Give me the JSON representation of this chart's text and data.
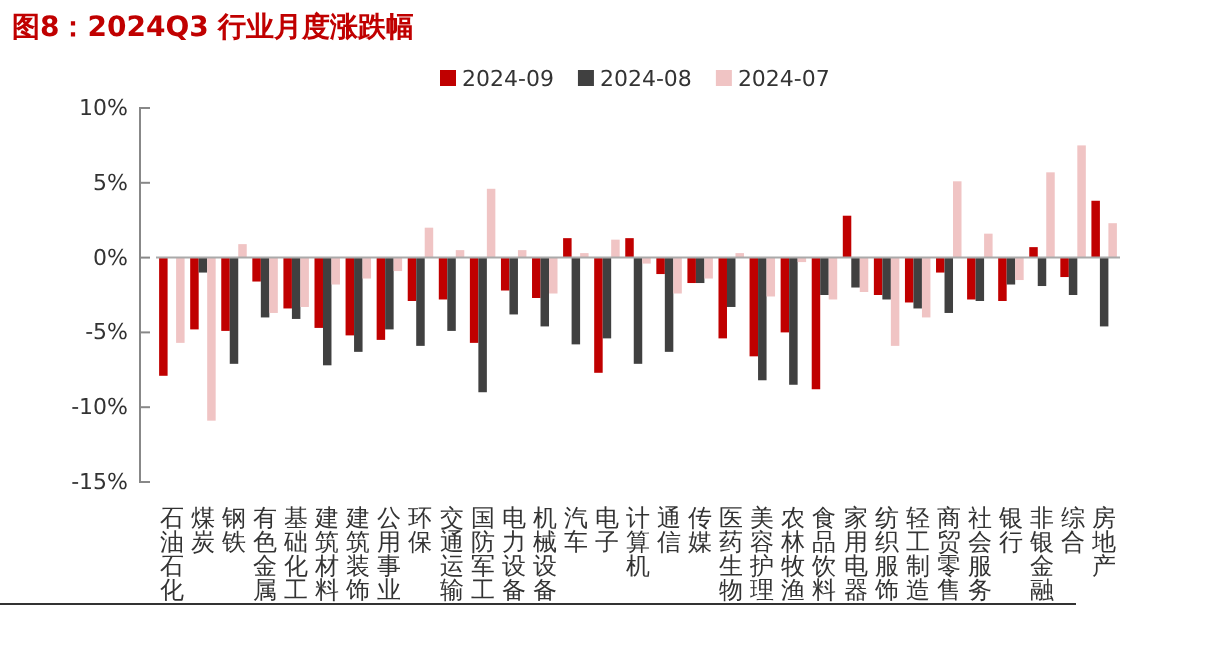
{
  "chart_data": {
    "type": "bar",
    "title": "图8：2024Q3 行业月度涨跌幅",
    "categories": [
      "石油石化",
      "煤炭",
      "钢铁",
      "有色金属",
      "基础化工",
      "建筑材料",
      "建筑装饰",
      "公用事业",
      "环保",
      "交通运输",
      "国防军工",
      "电力设备",
      "机械设备",
      "汽车",
      "电子",
      "计算机",
      "通信",
      "传媒",
      "医药生物",
      "美容护理",
      "农林牧渔",
      "食品饮料",
      "家用电器",
      "纺织服饰",
      "轻工制造",
      "商贸零售",
      "社会服务",
      "银行",
      "非银金融",
      "综合",
      "房地产"
    ],
    "series": [
      {
        "name": "2024-09",
        "color": "#c00000",
        "values": [
          -7.9,
          -4.8,
          -4.9,
          -1.6,
          -3.4,
          -4.7,
          -5.2,
          -5.5,
          -2.9,
          -2.8,
          -5.7,
          -2.2,
          -2.7,
          1.3,
          -7.7,
          1.3,
          -1.1,
          -1.7,
          -5.4,
          -6.6,
          -5.0,
          -8.8,
          2.8,
          -2.5,
          -3.0,
          -1.0,
          -2.8,
          -2.9,
          0.7,
          -1.3,
          3.8
        ]
      },
      {
        "name": "2024-08",
        "color": "#404040",
        "values": [
          null,
          -1.0,
          -7.1,
          -4.0,
          -4.1,
          -7.2,
          -6.3,
          -4.8,
          -5.9,
          -4.9,
          -9.0,
          -3.8,
          -4.6,
          -5.8,
          -5.4,
          -7.1,
          -6.3,
          -1.7,
          -3.3,
          -8.2,
          -8.5,
          -2.5,
          -2.0,
          -2.8,
          -3.4,
          -3.7,
          -2.9,
          -1.8,
          -1.9,
          -2.5,
          -4.6
        ]
      },
      {
        "name": "2024-07",
        "color": "#f0c4c4",
        "values": [
          -5.7,
          -10.9,
          0.9,
          -3.7,
          -3.3,
          -1.8,
          -1.4,
          -0.9,
          2.0,
          0.5,
          4.6,
          0.5,
          -2.4,
          0.3,
          1.2,
          -0.4,
          -2.4,
          -1.4,
          0.3,
          -2.6,
          -0.3,
          -2.8,
          -2.3,
          -5.9,
          -4.0,
          5.1,
          1.6,
          -1.5,
          5.7,
          7.5,
          2.3
        ]
      }
    ],
    "ylim": [
      -15,
      10
    ],
    "yticks": [
      {
        "value": -15,
        "label": "-15%"
      },
      {
        "value": -10,
        "label": "-10%"
      },
      {
        "value": -5,
        "label": "-5%"
      },
      {
        "value": 0,
        "label": "0%"
      },
      {
        "value": 5,
        "label": "5%"
      },
      {
        "value": 10,
        "label": "10%"
      }
    ],
    "ref_lines": [
      {
        "axis": "y",
        "value": 0,
        "color": "#aaaaaa"
      }
    ],
    "grid": false,
    "legend": "top"
  }
}
